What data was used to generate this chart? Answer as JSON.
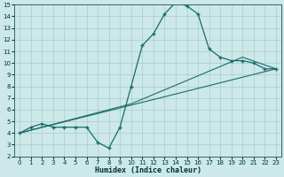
{
  "xlabel": "Humidex (Indice chaleur)",
  "bg_color": "#cce8e8",
  "grid_color": "#aacccc",
  "line_color": "#1a6b6b",
  "xlim": [
    -0.5,
    23.5
  ],
  "ylim": [
    2,
    15
  ],
  "xticks": [
    0,
    1,
    2,
    3,
    4,
    5,
    6,
    7,
    8,
    9,
    10,
    11,
    12,
    13,
    14,
    15,
    16,
    17,
    18,
    19,
    20,
    21,
    22,
    23
  ],
  "yticks": [
    2,
    3,
    4,
    5,
    6,
    7,
    8,
    9,
    10,
    11,
    12,
    13,
    14,
    15
  ],
  "line1_x": [
    0,
    1,
    2,
    3,
    4,
    5,
    6,
    7,
    8,
    9,
    10,
    11,
    12,
    13,
    14,
    15,
    16,
    17,
    18,
    19,
    20,
    21,
    22,
    23
  ],
  "line1_y": [
    4.0,
    4.5,
    4.8,
    4.5,
    4.5,
    4.5,
    4.5,
    3.2,
    2.7,
    4.5,
    8.0,
    11.5,
    12.5,
    14.2,
    15.2,
    14.9,
    14.2,
    11.2,
    10.5,
    10.2,
    10.2,
    10.0,
    9.5,
    9.5
  ],
  "line2_x": [
    0,
    23
  ],
  "line2_y": [
    4.0,
    9.5
  ],
  "line3_x": [
    0,
    10,
    20,
    23
  ],
  "line3_y": [
    4.0,
    6.5,
    10.5,
    9.5
  ]
}
